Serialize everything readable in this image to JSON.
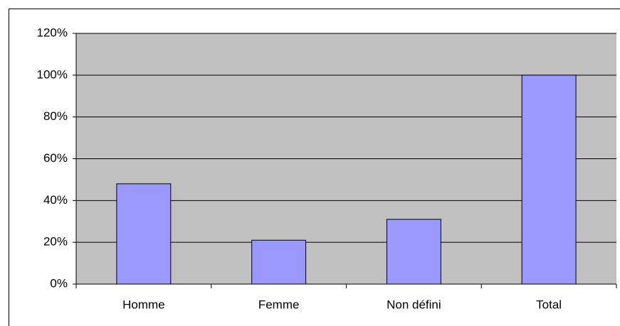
{
  "chart_data": {
    "type": "bar",
    "categories": [
      "Homme",
      "Femme",
      "Non défini",
      "Total"
    ],
    "values": [
      48,
      21,
      31,
      100
    ],
    "color": "#9999ff",
    "ylim": [
      0,
      120
    ],
    "yticks": [
      {
        "value": 0,
        "label": "0%"
      },
      {
        "value": 20,
        "label": "20%"
      },
      {
        "value": 40,
        "label": "40%"
      },
      {
        "value": 60,
        "label": "60%"
      },
      {
        "value": 80,
        "label": "80%"
      },
      {
        "value": 100,
        "label": "100%"
      },
      {
        "value": 120,
        "label": "120%"
      }
    ],
    "grid": true
  }
}
